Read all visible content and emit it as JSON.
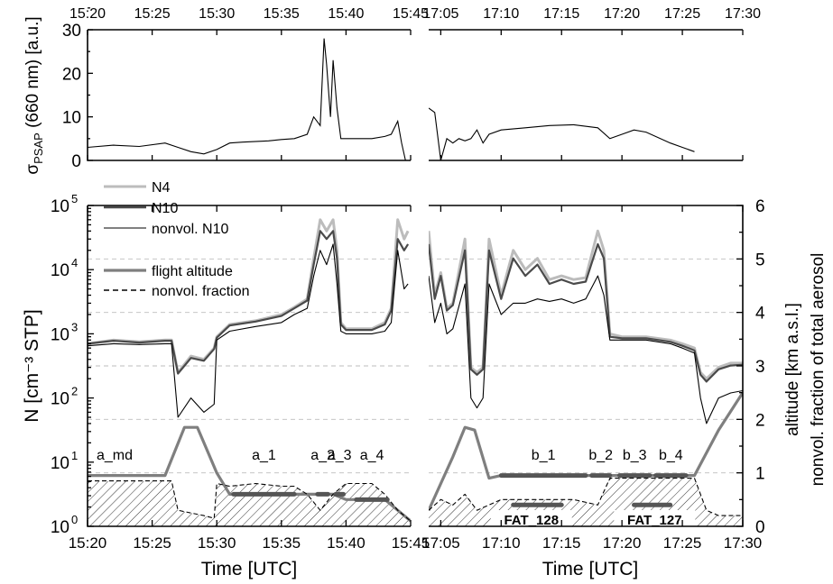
{
  "chart_data": [
    {
      "type": "line",
      "panel": "top",
      "ylabel_main": "σ",
      "ylabel_sub": "PSAP",
      "ylabel_rest": " (660 nm)  [a.u.]",
      "ylim": [
        0,
        30
      ],
      "yticks": [
        "0",
        "10",
        "20",
        "30"
      ],
      "x_left_ticks": [
        "15:20",
        "15:25",
        "15:30",
        "15:35",
        "15:40",
        "15:45"
      ],
      "x_right_ticks": [
        "17:05",
        "17:10",
        "17:15",
        "17:20",
        "17:25",
        "17:30"
      ],
      "x_left_range": [
        "15:20",
        "15:45"
      ],
      "x_right_range": [
        "17:04",
        "17:30"
      ],
      "series": [
        {
          "label": "σPSAP",
          "color": "#000000",
          "left": {
            "x": [
              "15:20",
              "15:22",
              "15:24",
              "15:26",
              "15:27",
              "15:28",
              "15:29",
              "15:30",
              "15:31",
              "15:32",
              "15:34",
              "15:35",
              "15:36",
              "15:37",
              "15:37.5",
              "15:38",
              "15:38.3",
              "15:38.5",
              "15:38.8",
              "15:39",
              "15:39.3",
              "15:39.6",
              "15:40",
              "15:41",
              "15:42",
              "15:43",
              "15:43.5",
              "15:44",
              "15:44.3",
              "15:44.6"
            ],
            "y": [
              3,
              3.5,
              3.2,
              4,
              3,
              2,
              1.5,
              2.5,
              4,
              4.2,
              4.5,
              4.8,
              5,
              6,
              10,
              8,
              28,
              22,
              10,
              23,
              12,
              5,
              5,
              5,
              5,
              5.5,
              6,
              9,
              4,
              0
            ]
          },
          "right": {
            "x": [
              "17:04",
              "17:04.5",
              "17:05",
              "17:05.5",
              "17:06",
              "17:06.5",
              "17:07",
              "17:07.5",
              "17:08",
              "17:08.5",
              "17:09",
              "17:10",
              "17:12",
              "17:14",
              "17:16",
              "17:18",
              "17:19",
              "17:20",
              "17:21",
              "17:22",
              "17:24",
              "17:25",
              "17:26"
            ],
            "y": [
              12,
              11,
              0,
              5,
              4,
              5,
              4.5,
              5,
              7,
              4,
              6,
              7,
              7.5,
              8,
              8.2,
              7.5,
              5,
              6,
              7,
              6.5,
              4,
              3,
              2
            ]
          }
        }
      ]
    },
    {
      "type": "line",
      "panel": "bottom",
      "ylabel": "N  [cm⁻³ STP]",
      "y_log": true,
      "ylim": [
        1,
        100000
      ],
      "yticks": [
        "10⁰",
        "10¹",
        "10²",
        "10³",
        "10⁴",
        "10⁵"
      ],
      "yticks_base": "10",
      "yticks_exp": [
        "0",
        "1",
        "2",
        "3",
        "4",
        "5"
      ],
      "ylabel_right_1": "altitude  [km a.s.l.]",
      "ylabel_right_2": "nonvol. fraction of total aerosol",
      "y2lim": [
        0,
        6
      ],
      "y2ticks": [
        "0",
        "1",
        "2",
        "3",
        "4",
        "5",
        "6"
      ],
      "x_left_ticks": [
        "15:20",
        "15:25",
        "15:30",
        "15:35",
        "15:40",
        "15:45"
      ],
      "x_right_ticks": [
        "17:05",
        "17:10",
        "17:15",
        "17:20",
        "17:25",
        "17:30"
      ],
      "xlabel": "Time  [UTC]",
      "legend": [
        "N4",
        "N10",
        "nonvol. N10",
        "flight altitude",
        "nonvol. fraction"
      ],
      "legend_placement": "top-left",
      "grid": "dashed horizontal at altitude ticks",
      "series": [
        {
          "name": "N4",
          "color": "#bcbcbc",
          "left": {
            "x": [
              "15:20",
              "15:22",
              "15:24",
              "15:26",
              "15:26.5",
              "15:27",
              "15:28",
              "15:29",
              "15:29.8",
              "15:30",
              "15:31",
              "15:33",
              "15:35",
              "15:36",
              "15:37",
              "15:37.5",
              "15:38",
              "15:38.5",
              "15:39",
              "15:39.3",
              "15:39.6",
              "15:40",
              "15:42",
              "15:43",
              "15:43.5",
              "15:44",
              "15:44.5",
              "15:44.8"
            ],
            "y": [
              700,
              800,
              750,
              800,
              800,
              250,
              450,
              400,
              600,
              900,
              1400,
              1600,
              2000,
              2600,
              3500,
              15000,
              60000,
              40000,
              60000,
              20000,
              1500,
              1200,
              1200,
              1500,
              2500,
              60000,
              30000,
              40000
            ]
          },
          "right": {
            "x": [
              "17:04",
              "17:04.5",
              "17:05",
              "17:05.5",
              "17:06",
              "17:07",
              "17:07.5",
              "17:08",
              "17:08.5",
              "17:09",
              "17:10",
              "17:11",
              "17:12",
              "17:13",
              "17:14",
              "17:15",
              "17:16",
              "17:17",
              "17:18",
              "17:18.5",
              "17:19",
              "17:20",
              "17:22",
              "17:24",
              "17:25",
              "17:26",
              "17:26.5",
              "17:27",
              "17:28",
              "17:29",
              "17:30"
            ],
            "y": [
              40000,
              4000,
              9000,
              2500,
              3000,
              30000,
              300,
              250,
              300,
              30000,
              4000,
              20000,
              10000,
              15000,
              7000,
              8000,
              7000,
              7500,
              40000,
              20000,
              1000,
              900,
              900,
              800,
              700,
              600,
              250,
              200,
              300,
              350,
              350
            ]
          }
        },
        {
          "name": "N10",
          "color": "#4a4a4a",
          "left": {
            "x": [
              "15:20",
              "15:22",
              "15:24",
              "15:26",
              "15:26.5",
              "15:27",
              "15:28",
              "15:29",
              "15:29.8",
              "15:30",
              "15:31",
              "15:33",
              "15:35",
              "15:36",
              "15:37",
              "15:37.5",
              "15:38",
              "15:38.5",
              "15:39",
              "15:39.3",
              "15:39.6",
              "15:40",
              "15:42",
              "15:43",
              "15:43.5",
              "15:44",
              "15:44.5",
              "15:44.8"
            ],
            "y": [
              700,
              780,
              730,
              780,
              780,
              240,
              420,
              380,
              580,
              870,
              1350,
              1550,
              1900,
              2500,
              3300,
              12000,
              40000,
              30000,
              40000,
              15000,
              1400,
              1150,
              1150,
              1400,
              2300,
              30000,
              20000,
              25000
            ]
          },
          "right": {
            "x": [
              "17:04",
              "17:04.5",
              "17:05",
              "17:05.5",
              "17:06",
              "17:07",
              "17:07.5",
              "17:08",
              "17:08.5",
              "17:09",
              "17:10",
              "17:11",
              "17:12",
              "17:13",
              "17:14",
              "17:15",
              "17:16",
              "17:17",
              "17:18",
              "17:18.5",
              "17:19",
              "17:20",
              "17:22",
              "17:24",
              "17:25",
              "17:26",
              "17:26.5",
              "17:27",
              "17:28",
              "17:29",
              "17:30"
            ],
            "y": [
              25000,
              3500,
              8000,
              2300,
              2800,
              20000,
              280,
              230,
              280,
              20000,
              3500,
              15000,
              8000,
              12000,
              6000,
              7000,
              6000,
              6500,
              25000,
              15000,
              900,
              850,
              850,
              750,
              650,
              550,
              230,
              180,
              280,
              320,
              330
            ]
          }
        },
        {
          "name": "nonvol. N10",
          "color": "#000000",
          "left": {
            "x": [
              "15:20",
              "15:22",
              "15:24",
              "15:26",
              "15:26.5",
              "15:27",
              "15:28",
              "15:29",
              "15:29.8",
              "15:30",
              "15:31",
              "15:33",
              "15:35",
              "15:36",
              "15:37",
              "15:37.5",
              "15:38",
              "15:38.5",
              "15:39",
              "15:39.3",
              "15:39.6",
              "15:40",
              "15:42",
              "15:43",
              "15:43.5",
              "15:44",
              "15:44.5",
              "15:44.8"
            ],
            "y": [
              650,
              700,
              680,
              700,
              700,
              50,
              100,
              60,
              80,
              800,
              1100,
              1300,
              1500,
              2000,
              2500,
              8000,
              20000,
              12000,
              25000,
              6000,
              1100,
              1000,
              1000,
              1100,
              1500,
              20000,
              5000,
              6000
            ]
          },
          "right": {
            "x": [
              "17:04",
              "17:04.5",
              "17:05",
              "17:05.5",
              "17:06",
              "17:07",
              "17:07.5",
              "17:08",
              "17:08.5",
              "17:09",
              "17:10",
              "17:11",
              "17:12",
              "17:13",
              "17:14",
              "17:15",
              "17:16",
              "17:17",
              "17:18",
              "17:18.5",
              "17:19",
              "17:20",
              "17:22",
              "17:24",
              "17:25",
              "17:26",
              "17:26.5",
              "17:27",
              "17:28",
              "17:29",
              "17:30"
            ],
            "y": [
              8000,
              1500,
              3000,
              1000,
              1200,
              6000,
              100,
              70,
              100,
              6000,
              2000,
              3000,
              3000,
              3500,
              3200,
              3500,
              3000,
              3500,
              8000,
              4000,
              800,
              800,
              800,
              700,
              600,
              500,
              100,
              40,
              100,
              120,
              130
            ]
          }
        },
        {
          "name": "flight altitude",
          "color": "#7f7f7f",
          "axis": "right",
          "left": {
            "x": [
              "15:20",
              "15:26",
              "15:27.5",
              "15:28.5",
              "15:30",
              "15:31",
              "15:36",
              "15:39",
              "15:40",
              "15:42",
              "15:43",
              "15:44",
              "15:45"
            ],
            "y": [
              0.95,
              0.95,
              1.85,
              1.85,
              1.0,
              0.6,
              0.6,
              0.6,
              0.5,
              0.5,
              0.5,
              0.3,
              0.1
            ]
          },
          "right": {
            "x": [
              "17:04",
              "17:06",
              "17:07",
              "17:07.8",
              "17:09",
              "17:10",
              "17:25",
              "17:26",
              "17:28",
              "17:30"
            ],
            "y": [
              0.3,
              1.3,
              1.85,
              1.8,
              0.9,
              0.95,
              0.95,
              0.95,
              1.8,
              2.5
            ]
          }
        },
        {
          "name": "nonvol. fraction",
          "color": "#000000",
          "axis": "right",
          "style": "dashed",
          "left": {
            "x": [
              "15:20",
              "15:22",
              "15:24",
              "15:26",
              "15:26.5",
              "15:27",
              "15:28",
              "15:29",
              "15:29.8",
              "15:30",
              "15:31",
              "15:33",
              "15:35",
              "15:36",
              "15:37",
              "15:38",
              "15:39",
              "15:40",
              "15:42",
              "15:43",
              "15:44",
              "15:45"
            ],
            "y": [
              0.85,
              0.85,
              0.85,
              0.85,
              0.85,
              0.3,
              0.25,
              0.2,
              0.15,
              0.8,
              0.75,
              0.8,
              0.75,
              0.75,
              0.6,
              0.3,
              0.6,
              0.8,
              0.8,
              0.6,
              0.3,
              0.1
            ]
          },
          "right": {
            "x": [
              "17:04",
              "17:05",
              "17:06",
              "17:07",
              "17:08",
              "17:09",
              "17:10",
              "17:12",
              "17:14",
              "17:16",
              "17:18",
              "17:19",
              "17:20",
              "17:22",
              "17:24",
              "17:26",
              "17:27",
              "17:28",
              "17:30"
            ],
            "y": [
              0.3,
              0.5,
              0.4,
              0.6,
              0.3,
              0.4,
              0.5,
              0.5,
              0.5,
              0.5,
              0.4,
              0.9,
              0.9,
              0.9,
              0.9,
              0.9,
              0.3,
              0.2,
              0.2
            ]
          }
        }
      ],
      "segments": [
        {
          "label": "a_md",
          "side": "left",
          "x": [
            "15:20",
            "15:26"
          ],
          "altitude": 0.95,
          "line": false
        },
        {
          "label": "a_1",
          "side": "left",
          "x": [
            "15:31.3",
            "15:36"
          ],
          "altitude": 0.6,
          "line": true
        },
        {
          "label": "a_2",
          "side": "left",
          "x": [
            "15:37.8",
            "15:38.6"
          ],
          "altitude": 0.6,
          "line": true
        },
        {
          "label": "a_3",
          "side": "left",
          "x": [
            "15:39.2",
            "15:39.8"
          ],
          "altitude": 0.6,
          "line": true
        },
        {
          "label": "a_4",
          "side": "left",
          "x": [
            "15:40.8",
            "15:43.2"
          ],
          "altitude": 0.5,
          "line": true
        },
        {
          "label": "b_1",
          "side": "right",
          "x": [
            "17:10",
            "17:17"
          ],
          "altitude": 0.95,
          "line": true
        },
        {
          "label": "b_2",
          "side": "right",
          "x": [
            "17:17.5",
            "17:19"
          ],
          "altitude": 0.95,
          "line": true
        },
        {
          "label": "b_3",
          "side": "right",
          "x": [
            "17:19.8",
            "17:22.3"
          ],
          "altitude": 0.95,
          "line": true
        },
        {
          "label": "b_4",
          "side": "right",
          "x": [
            "17:22.8",
            "17:25.3"
          ],
          "altitude": 0.95,
          "line": true
        }
      ],
      "fat_labels": [
        {
          "label": "FAT_128",
          "side": "right",
          "x": "17:12.5",
          "bar": [
            "17:11",
            "17:15"
          ],
          "altitude": 0.4
        },
        {
          "label": "FAT_127",
          "side": "right",
          "x": "17:22.7",
          "bar": [
            "17:21",
            "17:24"
          ],
          "altitude": 0.4
        }
      ]
    }
  ]
}
